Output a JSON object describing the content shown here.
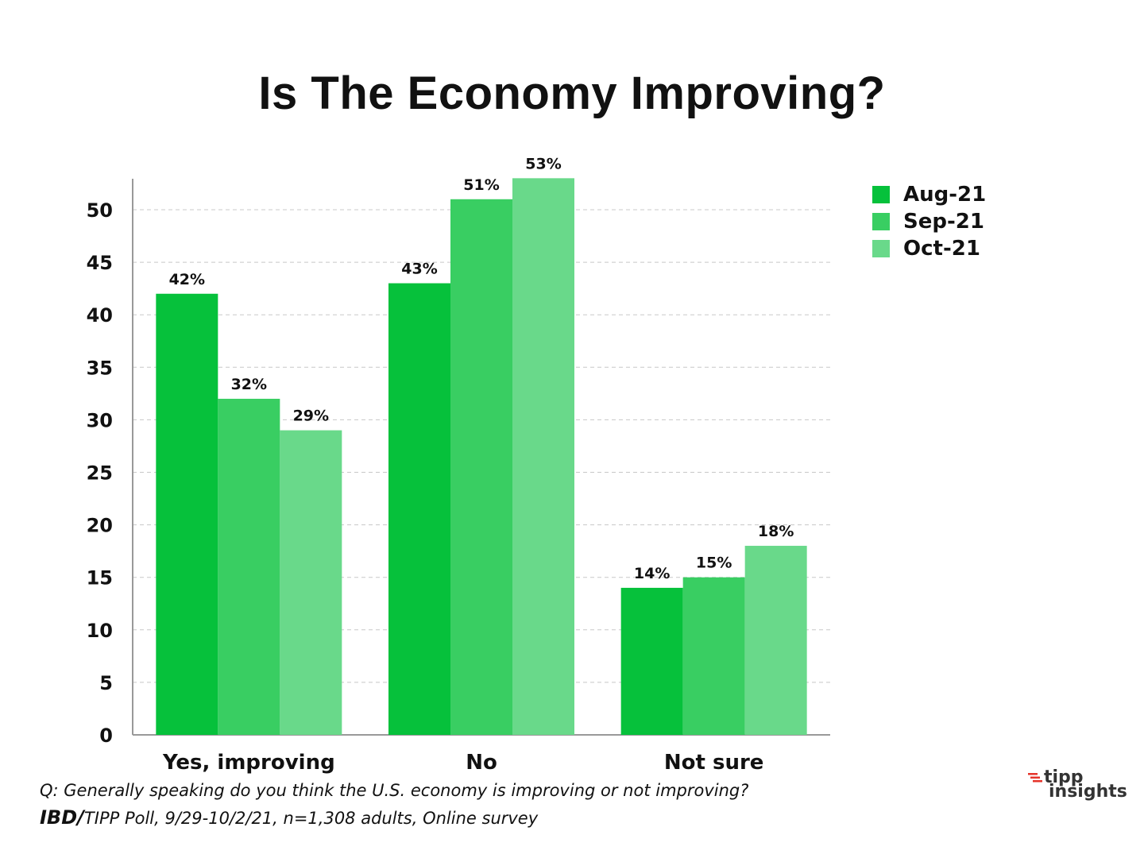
{
  "title": "Is The Economy Improving?",
  "chart_data": {
    "type": "bar",
    "categories": [
      "Yes, improving",
      "No",
      "Not sure"
    ],
    "series": [
      {
        "name": "Aug-21",
        "color": "#06c13b",
        "values": [
          42,
          43,
          14
        ],
        "labels": [
          "42%",
          "43%",
          "14%"
        ]
      },
      {
        "name": "Sep-21",
        "color": "#39ce62",
        "values": [
          32,
          51,
          15
        ],
        "labels": [
          "32%",
          "51%",
          "15%"
        ]
      },
      {
        "name": "Oct-21",
        "color": "#69d98a",
        "values": [
          29,
          53,
          18
        ],
        "labels": [
          "29%",
          "53%",
          "18%"
        ]
      }
    ],
    "yticks": [
      0,
      5,
      10,
      15,
      20,
      25,
      30,
      35,
      40,
      45,
      50
    ],
    "ylim": [
      0,
      53
    ],
    "grid": true,
    "legend_position": "top-right"
  },
  "footnote": {
    "question": "Q:  Generally speaking do you think the U.S. economy is improving or not improving?",
    "source_prefix": "IBD/",
    "source_rest": "TIPP Poll, 9/29-10/2/21, n=1,308 adults, Online survey"
  },
  "logo": {
    "line1": "tipp",
    "line2": "insights",
    "mark_color": "#e5332a"
  }
}
